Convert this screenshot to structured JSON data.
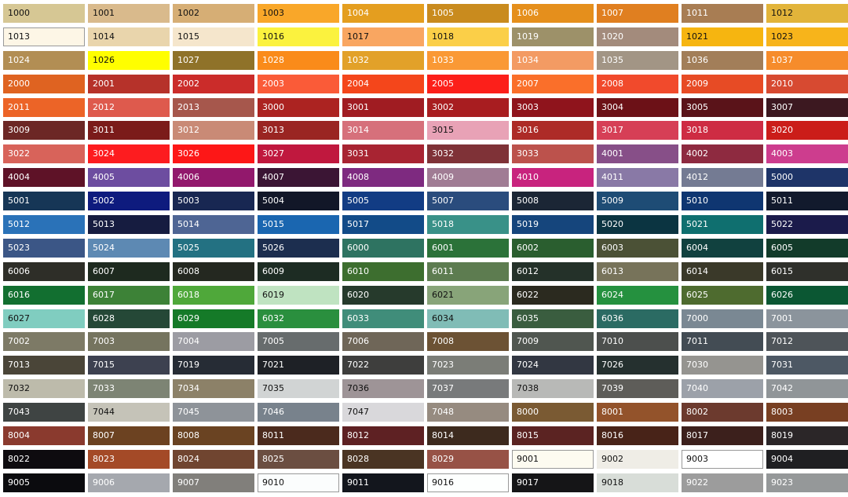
{
  "swatches": [
    [
      "1000",
      "#d6c794",
      1
    ],
    [
      "1001",
      "#d9ba8c",
      1
    ],
    [
      "1002",
      "#d6ae75",
      1
    ],
    [
      "1003",
      "#f9a729",
      1
    ],
    [
      "1004",
      "#e49e1f",
      0
    ],
    [
      "1005",
      "#c98b1e",
      0
    ],
    [
      "1006",
      "#e58f1c",
      0
    ],
    [
      "1007",
      "#e07f20",
      0
    ],
    [
      "1011",
      "#a87d53",
      0
    ],
    [
      "1012",
      "#e2b43a",
      1
    ],
    [
      "1013",
      "#fdf6e6",
      1
    ],
    [
      "1014",
      "#e9d5ac",
      1
    ],
    [
      "1015",
      "#f5e6cc",
      1
    ],
    [
      "1016",
      "#fbf23e",
      1
    ],
    [
      "1017",
      "#f9a661",
      1
    ],
    [
      "1018",
      "#fbcf48",
      1
    ],
    [
      "1019",
      "#9d9169",
      0
    ],
    [
      "1020",
      "#a38b7c",
      0
    ],
    [
      "1021",
      "#f6b510",
      1
    ],
    [
      "1023",
      "#f7b41b",
      1
    ],
    [
      "1024",
      "#b28e54",
      0
    ],
    [
      "1026",
      "#fffe00",
      1
    ],
    [
      "1027",
      "#8f7229",
      0
    ],
    [
      "1028",
      "#fa8b1a",
      0
    ],
    [
      "1032",
      "#e2a129",
      0
    ],
    [
      "1033",
      "#fa9935",
      0
    ],
    [
      "1034",
      "#f39b63",
      0
    ],
    [
      "1035",
      "#a29585",
      0
    ],
    [
      "1036",
      "#a27e59",
      0
    ],
    [
      "1037",
      "#f68c2b",
      0
    ],
    [
      "2000",
      "#df6321",
      0
    ],
    [
      "2001",
      "#b6322a",
      0
    ],
    [
      "2002",
      "#cb2c2a",
      0
    ],
    [
      "2003",
      "#fa5b38",
      0
    ],
    [
      "2004",
      "#f4461b",
      0
    ],
    [
      "2005",
      "#fc1f1a",
      0
    ],
    [
      "2007",
      "#fa6f2a",
      0
    ],
    [
      "2008",
      "#f14a2c",
      0
    ],
    [
      "2009",
      "#e74b25",
      0
    ],
    [
      "2010",
      "#d74a31",
      0
    ],
    [
      "2011",
      "#ec6427",
      0
    ],
    [
      "2012",
      "#de5a4d",
      0
    ],
    [
      "2013",
      "#a6574c",
      0
    ],
    [
      "3000",
      "#ac2321",
      0
    ],
    [
      "3001",
      "#a01c22",
      0
    ],
    [
      "3002",
      "#a81d20",
      0
    ],
    [
      "3003",
      "#8f141c",
      0
    ],
    [
      "3004",
      "#6c1117",
      0
    ],
    [
      "3005",
      "#5a1319",
      0
    ],
    [
      "3007",
      "#3c1820",
      0
    ],
    [
      "3009",
      "#6c2725",
      0
    ],
    [
      "3011",
      "#7b1b1a",
      0
    ],
    [
      "3012",
      "#c98a76",
      0
    ],
    [
      "3013",
      "#9a2522",
      0
    ],
    [
      "3014",
      "#d6707b",
      0
    ],
    [
      "3015",
      "#e8a2b6",
      1
    ],
    [
      "3016",
      "#ad2b27",
      0
    ],
    [
      "3017",
      "#d63f56",
      0
    ],
    [
      "3018",
      "#ce2c43",
      0
    ],
    [
      "3020",
      "#cb1d19",
      0
    ],
    [
      "3022",
      "#d8635a",
      0
    ],
    [
      "3024",
      "#fd1c1f",
      0
    ],
    [
      "3026",
      "#fd1717",
      0
    ],
    [
      "3027",
      "#c0183e",
      0
    ],
    [
      "3031",
      "#a82432",
      0
    ],
    [
      "3032",
      "#7f3237",
      0
    ],
    [
      "3033",
      "#bc524c",
      0
    ],
    [
      "4001",
      "#874f88",
      0
    ],
    [
      "4002",
      "#8e2a40",
      0
    ],
    [
      "4003",
      "#cd3d8e",
      0
    ],
    [
      "4004",
      "#5e1227",
      0
    ],
    [
      "4005",
      "#6d4da0",
      0
    ],
    [
      "4006",
      "#92186c",
      0
    ],
    [
      "4007",
      "#3b1534",
      0
    ],
    [
      "4008",
      "#7e2a80",
      0
    ],
    [
      "4009",
      "#a07c94",
      0
    ],
    [
      "4010",
      "#c8237e",
      0
    ],
    [
      "4011",
      "#8979a6",
      0
    ],
    [
      "4012",
      "#747b93",
      0
    ],
    [
      "5000",
      "#1e3468",
      0
    ],
    [
      "5001",
      "#163656",
      0
    ],
    [
      "5002",
      "#0e1b7e",
      0
    ],
    [
      "5003",
      "#182752",
      0
    ],
    [
      "5004",
      "#121728",
      0
    ],
    [
      "5005",
      "#123c84",
      0
    ],
    [
      "5007",
      "#2a4c7d",
      0
    ],
    [
      "5008",
      "#1b2635",
      0
    ],
    [
      "5009",
      "#1e4c75",
      0
    ],
    [
      "5010",
      "#0f3671",
      0
    ],
    [
      "5011",
      "#121a2d",
      0
    ],
    [
      "5012",
      "#2a72b8",
      0
    ],
    [
      "5013",
      "#161c40",
      0
    ],
    [
      "5014",
      "#4e6594",
      0
    ],
    [
      "5015",
      "#1a66b0",
      0
    ],
    [
      "5017",
      "#124b88",
      0
    ],
    [
      "5018",
      "#399188",
      0
    ],
    [
      "5019",
      "#15457c",
      0
    ],
    [
      "5020",
      "#0b3441",
      0
    ],
    [
      "5021",
      "#0f6f6f",
      0
    ],
    [
      "5022",
      "#1b1b4b",
      0
    ],
    [
      "5023",
      "#3b5686",
      0
    ],
    [
      "5024",
      "#5d89b3",
      0
    ],
    [
      "5025",
      "#237182",
      0
    ],
    [
      "5026",
      "#1c2e4f",
      0
    ],
    [
      "6000",
      "#2e7361",
      0
    ],
    [
      "6001",
      "#2b7239",
      0
    ],
    [
      "6002",
      "#2a5e2f",
      0
    ],
    [
      "6003",
      "#4b5136",
      0
    ],
    [
      "6004",
      "#11413f",
      0
    ],
    [
      "6005",
      "#123b2a",
      0
    ],
    [
      "6006",
      "#2e2e28",
      0
    ],
    [
      "6007",
      "#1e2a1f",
      0
    ],
    [
      "6008",
      "#242820",
      0
    ],
    [
      "6009",
      "#1d2c23",
      0
    ],
    [
      "6010",
      "#3d6e2f",
      0
    ],
    [
      "6011",
      "#5d7c50",
      0
    ],
    [
      "6012",
      "#243129",
      0
    ],
    [
      "6013",
      "#77735a",
      0
    ],
    [
      "6014",
      "#3a3929",
      0
    ],
    [
      "6015",
      "#2f302b",
      0
    ],
    [
      "6016",
      "#126f30",
      0
    ],
    [
      "6017",
      "#3d8237",
      0
    ],
    [
      "6018",
      "#4fa83a",
      0
    ],
    [
      "6019",
      "#bfe3c1",
      1
    ],
    [
      "6020",
      "#263a2c",
      0
    ],
    [
      "6021",
      "#88a479",
      1
    ],
    [
      "6022",
      "#2b2a1f",
      0
    ],
    [
      "6024",
      "#25913f",
      0
    ],
    [
      "6025",
      "#4e6b2f",
      0
    ],
    [
      "6026",
      "#0b5733",
      0
    ],
    [
      "6027",
      "#80cdc0",
      1
    ],
    [
      "6028",
      "#254837",
      0
    ],
    [
      "6029",
      "#157a28",
      0
    ],
    [
      "6032",
      "#2a8f3e",
      0
    ],
    [
      "6033",
      "#408d7a",
      0
    ],
    [
      "6034",
      "#80bcb6",
      1
    ],
    [
      "6035",
      "#3a5d3f",
      0
    ],
    [
      "6036",
      "#2b6b63",
      0
    ],
    [
      "7000",
      "#7a8893",
      0
    ],
    [
      "7001",
      "#8b949c",
      0
    ],
    [
      "7002",
      "#7d7a66",
      0
    ],
    [
      "7003",
      "#75745f",
      0
    ],
    [
      "7004",
      "#9c9ca3",
      0
    ],
    [
      "7005",
      "#676c6d",
      0
    ],
    [
      "7006",
      "#6f6658",
      0
    ],
    [
      "7008",
      "#6c5234",
      0
    ],
    [
      "7009",
      "#505650",
      0
    ],
    [
      "7010",
      "#4c4f4d",
      0
    ],
    [
      "7011",
      "#434c54",
      0
    ],
    [
      "7012",
      "#4e5459",
      0
    ],
    [
      "7013",
      "#4a4538",
      0
    ],
    [
      "7015",
      "#3d4150",
      0
    ],
    [
      "7019",
      "#262c35",
      0
    ],
    [
      "7021",
      "#1e2126",
      0
    ],
    [
      "7022",
      "#3e3e3d",
      0
    ],
    [
      "7023",
      "#7b7d77",
      0
    ],
    [
      "7024",
      "#323742",
      0
    ],
    [
      "7026",
      "#25302f",
      0
    ],
    [
      "7030",
      "#959490",
      0
    ],
    [
      "7031",
      "#4d5864",
      0
    ],
    [
      "7032",
      "#bdbbab",
      1
    ],
    [
      "7033",
      "#7d8474",
      0
    ],
    [
      "7034",
      "#8c8168",
      0
    ],
    [
      "7035",
      "#d1d4d4",
      1
    ],
    [
      "7036",
      "#9e9497",
      1
    ],
    [
      "7037",
      "#787a7b",
      0
    ],
    [
      "7038",
      "#b8b9b7",
      1
    ],
    [
      "7039",
      "#5e5d59",
      0
    ],
    [
      "7040",
      "#9ca1a9",
      0
    ],
    [
      "7042",
      "#909598",
      0
    ],
    [
      "7043",
      "#3f4443",
      0
    ],
    [
      "7044",
      "#c5c3b8",
      1
    ],
    [
      "7045",
      "#8e9399",
      0
    ],
    [
      "7046",
      "#78828c",
      0
    ],
    [
      "7047",
      "#d9d8db",
      1
    ],
    [
      "7048",
      "#968b80",
      0
    ],
    [
      "8000",
      "#7a5a33",
      0
    ],
    [
      "8001",
      "#93532b",
      0
    ],
    [
      "8002",
      "#6c3a2e",
      0
    ],
    [
      "8003",
      "#783f22",
      0
    ],
    [
      "8004",
      "#8a3a2e",
      0
    ],
    [
      "8007",
      "#6c4221",
      0
    ],
    [
      "8008",
      "#6a4322",
      0
    ],
    [
      "8011",
      "#4b2a1d",
      0
    ],
    [
      "8012",
      "#5e2123",
      0
    ],
    [
      "8014",
      "#3d2a1e",
      0
    ],
    [
      "8015",
      "#5b2322",
      0
    ],
    [
      "8016",
      "#482318",
      0
    ],
    [
      "8017",
      "#3c201c",
      0
    ],
    [
      "8019",
      "#2b2628",
      0
    ],
    [
      "8022",
      "#0e0b0f",
      0
    ],
    [
      "8023",
      "#a44a27",
      0
    ],
    [
      "8024",
      "#704530",
      0
    ],
    [
      "8025",
      "#6b4e41",
      0
    ],
    [
      "8028",
      "#4a3423",
      0
    ],
    [
      "8029",
      "#975246",
      0
    ],
    [
      "9001",
      "#fdfbf0",
      1
    ],
    [
      "9002",
      "#efede6",
      1
    ],
    [
      "9003",
      "#ffffff",
      1
    ],
    [
      "9004",
      "#1f1f22",
      0
    ],
    [
      "9005",
      "#0b0b0e",
      0
    ],
    [
      "9006",
      "#a5a8ae",
      0
    ],
    [
      "9007",
      "#817f7b",
      0
    ],
    [
      "9010",
      "#fbfdfd",
      1
    ],
    [
      "9011",
      "#13161d",
      0
    ],
    [
      "9016",
      "#fdfffe",
      1
    ],
    [
      "9017",
      "#151517",
      0
    ],
    [
      "9018",
      "#d8ddd8",
      1
    ],
    [
      "9022",
      "#9c9c9c",
      0
    ],
    [
      "9023",
      "#959899",
      0
    ]
  ]
}
